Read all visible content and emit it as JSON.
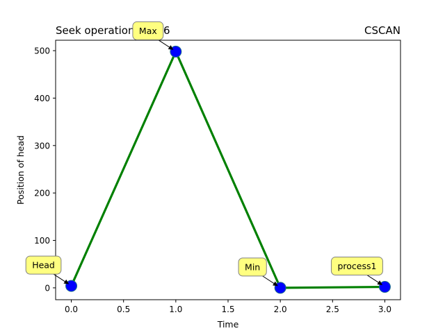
{
  "chart_data": {
    "type": "line",
    "title_left": "Seek operations : 496",
    "title_right": "CSCAN",
    "xlabel": "Time",
    "ylabel": "Position of head",
    "xlim": [
      -0.15,
      3.15
    ],
    "ylim": [
      -25,
      522
    ],
    "xticks": [
      0.0,
      0.5,
      1.0,
      1.5,
      2.0,
      2.5,
      3.0
    ],
    "xtick_labels": [
      "0.0",
      "0.5",
      "1.0",
      "1.5",
      "2.0",
      "2.5",
      "3.0"
    ],
    "yticks": [
      0,
      100,
      200,
      300,
      400,
      500
    ],
    "ytick_labels": [
      "0",
      "100",
      "200",
      "300",
      "400",
      "500"
    ],
    "series": [
      {
        "x": [
          0,
          1,
          2,
          3
        ],
        "y": [
          4,
          498,
          0,
          2
        ]
      }
    ],
    "annotations": [
      {
        "text": "Head",
        "x": 0,
        "y": 4
      },
      {
        "text": "Max",
        "x": 1,
        "y": 498
      },
      {
        "text": "Min",
        "x": 2,
        "y": 0
      },
      {
        "text": "process1",
        "x": 3,
        "y": 2
      }
    ],
    "colors": {
      "line": "#008000",
      "marker_fill": "#0000ff",
      "marker_edge": "#1f6f8b",
      "annotation_fill": "#ffff80",
      "annotation_edge": "#808080",
      "axis": "#000000"
    },
    "grid": false
  }
}
